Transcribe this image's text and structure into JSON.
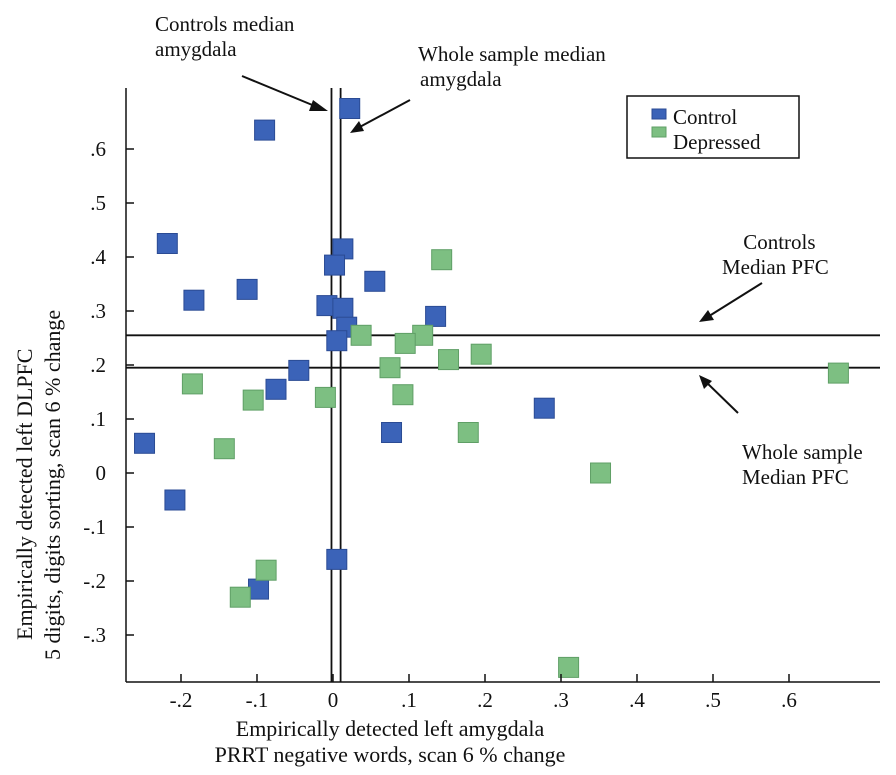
{
  "chart_data": {
    "type": "scatter",
    "xlabel": [
      "Empirically detected left amygdala",
      "PRRT negative words, scan 6 % change"
    ],
    "ylabel": [
      "Empirically detected left  DLPFC",
      "5 digits, digits sorting, scan 6 % change"
    ],
    "xlim": [
      -0.26,
      0.67
    ],
    "ylim": [
      -0.37,
      0.7
    ],
    "x_ticks": [
      {
        "value": -0.2,
        "label": "-.2"
      },
      {
        "value": -0.1,
        "label": "-.1"
      },
      {
        "value": 0,
        "label": "0"
      },
      {
        "value": 0.1,
        "label": ".1"
      },
      {
        "value": 0.2,
        "label": ".2"
      },
      {
        "value": 0.3,
        "label": ".3"
      },
      {
        "value": 0.4,
        "label": ".4"
      },
      {
        "value": 0.5,
        "label": ".5"
      },
      {
        "value": 0.6,
        "label": ".6"
      }
    ],
    "y_ticks": [
      {
        "value": 0.6,
        "label": ".6"
      },
      {
        "value": 0.5,
        "label": ".5"
      },
      {
        "value": 0.4,
        "label": ".4"
      },
      {
        "value": 0.3,
        "label": ".3"
      },
      {
        "value": 0.2,
        "label": ".2"
      },
      {
        "value": 0.1,
        "label": ".1"
      },
      {
        "value": 0,
        "label": "0"
      },
      {
        "value": -0.1,
        "label": "-.1"
      },
      {
        "value": -0.2,
        "label": "-.2"
      },
      {
        "value": -0.3,
        "label": "-.3"
      }
    ],
    "grid": false,
    "legend": {
      "position": "top-right"
    },
    "series": [
      {
        "name": "Control",
        "color": "#3b63b8",
        "points": [
          [
            0.022,
            0.675
          ],
          [
            -0.09,
            0.635
          ],
          [
            -0.218,
            0.425
          ],
          [
            -0.113,
            0.34
          ],
          [
            -0.183,
            0.32
          ],
          [
            0.013,
            0.415
          ],
          [
            0.002,
            0.385
          ],
          [
            0.055,
            0.355
          ],
          [
            -0.008,
            0.31
          ],
          [
            0.013,
            0.305
          ],
          [
            0.018,
            0.27
          ],
          [
            0.005,
            0.245
          ],
          [
            0.135,
            0.29
          ],
          [
            -0.045,
            0.19
          ],
          [
            -0.075,
            0.155
          ],
          [
            -0.248,
            0.055
          ],
          [
            0.077,
            0.075
          ],
          [
            0.278,
            0.12
          ],
          [
            -0.208,
            -0.05
          ],
          [
            -0.098,
            -0.215
          ],
          [
            0.005,
            -0.16
          ]
        ]
      },
      {
        "name": "Depressed",
        "color": "#7dbf82",
        "points": [
          [
            0.143,
            0.395
          ],
          [
            0.037,
            0.255
          ],
          [
            0.118,
            0.255
          ],
          [
            0.095,
            0.24
          ],
          [
            0.195,
            0.22
          ],
          [
            0.152,
            0.21
          ],
          [
            0.075,
            0.195
          ],
          [
            0.665,
            0.185
          ],
          [
            -0.185,
            0.165
          ],
          [
            -0.105,
            0.135
          ],
          [
            -0.01,
            0.14
          ],
          [
            0.092,
            0.145
          ],
          [
            0.178,
            0.075
          ],
          [
            -0.143,
            0.045
          ],
          [
            0.352,
            0.0
          ],
          [
            -0.088,
            -0.18
          ],
          [
            -0.122,
            -0.23
          ],
          [
            0.31,
            -0.36
          ]
        ]
      }
    ],
    "reference_lines": [
      {
        "orientation": "vertical",
        "value": -0.002,
        "name": "controls-median-amygdala-line"
      },
      {
        "orientation": "vertical",
        "value": 0.01,
        "name": "whole-sample-median-amygdala-line"
      },
      {
        "orientation": "horizontal",
        "value": 0.255,
        "name": "controls-median-pfc-line"
      },
      {
        "orientation": "horizontal",
        "value": 0.195,
        "name": "whole-sample-median-pfc-line"
      }
    ],
    "annotations": {
      "controls_median_amygdala": [
        "Controls median",
        "amygdala"
      ],
      "whole_sample_median_amygdala": [
        "Whole sample median",
        "amygdala"
      ],
      "controls_median_pfc": [
        "Controls",
        "Median PFC"
      ],
      "whole_sample_median_pfc": [
        "Whole sample",
        "Median PFC"
      ]
    }
  }
}
